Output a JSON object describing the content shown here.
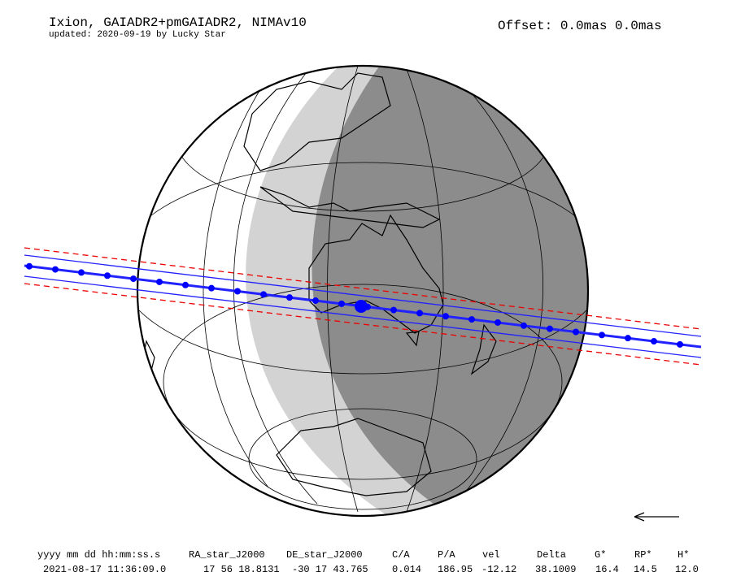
{
  "header": {
    "title": "Ixion, GAIADR2+pmGAIADR2, NIMAv10",
    "subtitle": "updated: 2020-09-19 by Lucky Star",
    "offset": "Offset: 0.0mas 0.0mas"
  },
  "table": {
    "columns": [
      "yyyy mm dd hh:mm:ss.s",
      "RA_star_J2000",
      "DE_star_J2000",
      "C/A",
      "P/A",
      "vel",
      "Delta",
      "G*",
      "RP*",
      "H*"
    ],
    "rows": [
      [
        "2021-08-17 11:36:09.0",
        "17 56 18.8131",
        "-30 17 43.765",
        "0.014",
        "186.95",
        "-12.12",
        "38.1009",
        "16.4",
        "14.5",
        "12.0"
      ]
    ]
  }
}
